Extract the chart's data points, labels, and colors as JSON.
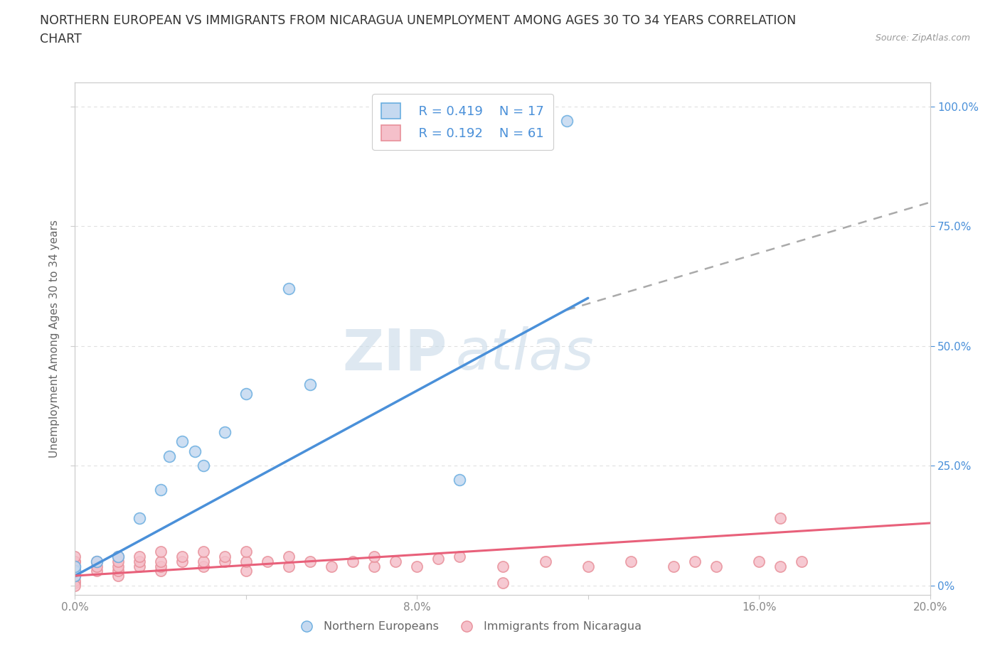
{
  "title_line1": "NORTHERN EUROPEAN VS IMMIGRANTS FROM NICARAGUA UNEMPLOYMENT AMONG AGES 30 TO 34 YEARS CORRELATION",
  "title_line2": "CHART",
  "source": "Source: ZipAtlas.com",
  "ylabel": "Unemployment Among Ages 30 to 34 years",
  "xlim": [
    0.0,
    0.2
  ],
  "ylim": [
    -0.02,
    1.05
  ],
  "xticks": [
    0.0,
    0.04,
    0.08,
    0.12,
    0.16,
    0.2
  ],
  "xtick_labels": [
    "0.0%",
    "",
    "8.0%",
    "",
    "16.0%",
    "20.0%"
  ],
  "ytick_labels_right": [
    "100.0%",
    "75.0%",
    "50.0%",
    "25.0%",
    "0%"
  ],
  "yticks_right": [
    1.0,
    0.75,
    0.5,
    0.25,
    0.0
  ],
  "blue_fill_color": "#c5d9f0",
  "pink_fill_color": "#f5c0ca",
  "blue_edge_color": "#6aaee0",
  "pink_edge_color": "#e8909a",
  "blue_line_color": "#4a90d9",
  "pink_line_color": "#e8607a",
  "dashed_line_color": "#aaaaaa",
  "legend_text_color": "#4a90d9",
  "legend_R1": "R = 0.419",
  "legend_N1": "N = 17",
  "legend_R2": "R = 0.192",
  "legend_N2": "N = 61",
  "watermark_zip": "ZIP",
  "watermark_atlas": "atlas",
  "blue_scatter_x": [
    0.0,
    0.0,
    0.0,
    0.005,
    0.01,
    0.015,
    0.02,
    0.022,
    0.025,
    0.028,
    0.03,
    0.035,
    0.04,
    0.05,
    0.055,
    0.09,
    0.115
  ],
  "blue_scatter_y": [
    0.02,
    0.03,
    0.04,
    0.05,
    0.06,
    0.14,
    0.2,
    0.27,
    0.3,
    0.28,
    0.25,
    0.32,
    0.4,
    0.62,
    0.42,
    0.22,
    0.97
  ],
  "pink_scatter_x": [
    0.0,
    0.0,
    0.0,
    0.0,
    0.0,
    0.0,
    0.0,
    0.0,
    0.0,
    0.0,
    0.0,
    0.0,
    0.005,
    0.005,
    0.005,
    0.01,
    0.01,
    0.01,
    0.01,
    0.01,
    0.015,
    0.015,
    0.015,
    0.02,
    0.02,
    0.02,
    0.02,
    0.025,
    0.025,
    0.03,
    0.03,
    0.03,
    0.035,
    0.035,
    0.04,
    0.04,
    0.04,
    0.045,
    0.05,
    0.05,
    0.055,
    0.06,
    0.065,
    0.07,
    0.07,
    0.075,
    0.08,
    0.085,
    0.09,
    0.1,
    0.1,
    0.11,
    0.12,
    0.13,
    0.14,
    0.145,
    0.15,
    0.16,
    0.165,
    0.17,
    0.165
  ],
  "pink_scatter_y": [
    0.005,
    0.01,
    0.02,
    0.02,
    0.03,
    0.03,
    0.04,
    0.04,
    0.05,
    0.05,
    0.06,
    0.0,
    0.03,
    0.04,
    0.05,
    0.02,
    0.03,
    0.04,
    0.05,
    0.06,
    0.04,
    0.05,
    0.06,
    0.03,
    0.04,
    0.05,
    0.07,
    0.05,
    0.06,
    0.04,
    0.05,
    0.07,
    0.05,
    0.06,
    0.03,
    0.05,
    0.07,
    0.05,
    0.04,
    0.06,
    0.05,
    0.04,
    0.05,
    0.04,
    0.06,
    0.05,
    0.04,
    0.055,
    0.06,
    0.04,
    0.005,
    0.05,
    0.04,
    0.05,
    0.04,
    0.05,
    0.04,
    0.05,
    0.14,
    0.05,
    0.04
  ],
  "blue_trend_x": [
    0.0,
    0.12
  ],
  "blue_trend_y": [
    0.02,
    0.6
  ],
  "dash_trend_x": [
    0.115,
    0.2
  ],
  "dash_trend_y": [
    0.575,
    0.8
  ],
  "pink_trend_x": [
    0.0,
    0.2
  ],
  "pink_trend_y": [
    0.02,
    0.13
  ],
  "bg_color": "#ffffff",
  "grid_color": "#e0e0e0",
  "tick_color": "#888888",
  "label_color": "#666666"
}
